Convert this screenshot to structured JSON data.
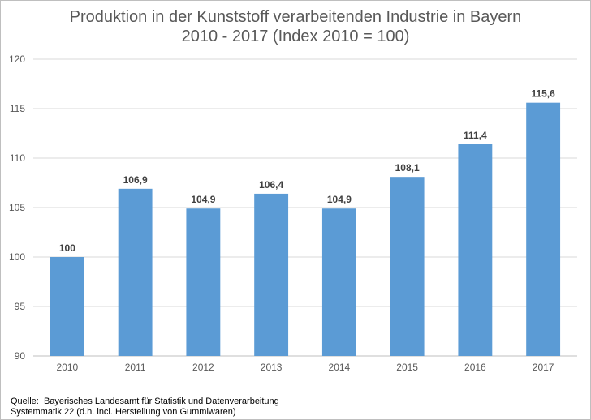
{
  "chart_data": {
    "type": "bar",
    "title_line1": "Produktion in der Kunststoff verarbeitenden Industrie in Bayern",
    "title_line2": "2010 - 2017 (Index 2010 = 100)",
    "categories": [
      "2010",
      "2011",
      "2012",
      "2013",
      "2014",
      "2015",
      "2016",
      "2017"
    ],
    "values": [
      100,
      106.9,
      104.9,
      106.4,
      104.9,
      108.1,
      111.4,
      115.6
    ],
    "value_labels": [
      "100",
      "106,9",
      "104,9",
      "106,4",
      "104,9",
      "108,1",
      "111,4",
      "115,6"
    ],
    "ylim": [
      90,
      120
    ],
    "yticks": [
      90,
      95,
      100,
      105,
      110,
      115,
      120
    ],
    "grid": true,
    "bar_color": "#5b9bd5",
    "xlabel": "",
    "ylabel": ""
  },
  "footer": {
    "source_line1": "Quelle:  Bayerisches Landesamt für Statistik und Datenverarbeitung",
    "source_line2": "Systemmatik 22 (d.h. incl. Herstellung von Gummiwaren)"
  }
}
